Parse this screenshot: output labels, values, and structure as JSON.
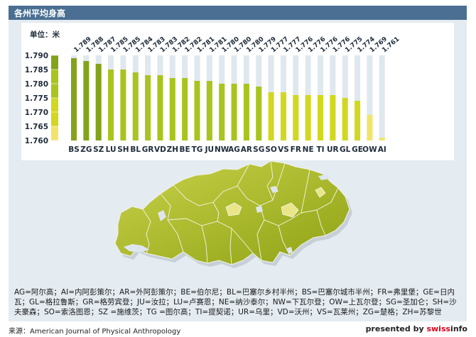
{
  "title": "各州平均身高",
  "chart_data": {
    "type": "bar",
    "unit_label": "单位：米",
    "categories": [
      "BS",
      "ZG",
      "SZ",
      "LU",
      "SH",
      "BL",
      "GR",
      "VD",
      "ZH",
      "BE",
      "TG",
      "JU",
      "NW",
      "AG",
      "AR",
      "SG",
      "SO",
      "VS",
      "FR",
      "NE",
      "TI",
      "UR",
      "GL",
      "GE",
      "OW",
      "AI"
    ],
    "values": [
      1.789,
      1.788,
      1.787,
      1.785,
      1.785,
      1.784,
      1.783,
      1.783,
      1.782,
      1.782,
      1.781,
      1.781,
      1.78,
      1.78,
      1.78,
      1.779,
      1.777,
      1.777,
      1.776,
      1.776,
      1.776,
      1.776,
      1.775,
      1.774,
      1.769,
      1.761
    ],
    "value_labels": [
      "1.789",
      "1.788",
      "1.787",
      "1.785",
      "1.785",
      "1.784",
      "1.783",
      "1.783",
      "1.782",
      "1.782",
      "1.781",
      "1.781",
      "1.780",
      "1.780",
      "1.780",
      "1.779",
      "1.777",
      "1.777",
      "1.776",
      "1.776",
      "1.776",
      "1.776",
      "1.775",
      "1.774",
      "1.769",
      "1.761"
    ],
    "y_ticks": [
      "1.790",
      "1.785",
      "1.780",
      "1.775",
      "1.770",
      "1.765",
      "1.760"
    ],
    "ylim": [
      1.76,
      1.79
    ],
    "bar_track_top": 1.79,
    "colors": {
      "dark": "#84a21a",
      "mid": "#a9c41e",
      "light": "#d1d81e",
      "pale": "#f2e46b",
      "track": "#dfe8ef"
    },
    "color_bands": [
      {
        "min": 1.786,
        "color": "dark"
      },
      {
        "min": 1.778,
        "color": "mid"
      },
      {
        "min": 1.772,
        "color": "light"
      },
      {
        "min": 0,
        "color": "pale"
      }
    ]
  },
  "legend": "AG=阿尔高；AI=内阿彭策尔；AR=外阿彭策尔；BE=伯尔尼；BL=巴塞尔乡村半州；BS=巴塞尔城市半州；FR=弗里堡；GE=日内瓦；GL=格拉鲁斯；GR=格劳宾登；JU=汝拉；LU=卢赛恩；NE=纳沙泰尔；NW=下瓦尔登；OW=上瓦尔登；SG=圣加仑；SH=沙夫豪森；SO=索洛图恩；SZ =施维茨；TG =图尔高；TI=提契诺；UR=乌里；VD=沃州；VS=瓦莱州；ZG=楚格；ZH=苏黎世",
  "source": "来源：American Journal of Physical Anthropology",
  "brand": {
    "prefix": "presented by ",
    "swiss": "swiss",
    "suffix": "info"
  }
}
